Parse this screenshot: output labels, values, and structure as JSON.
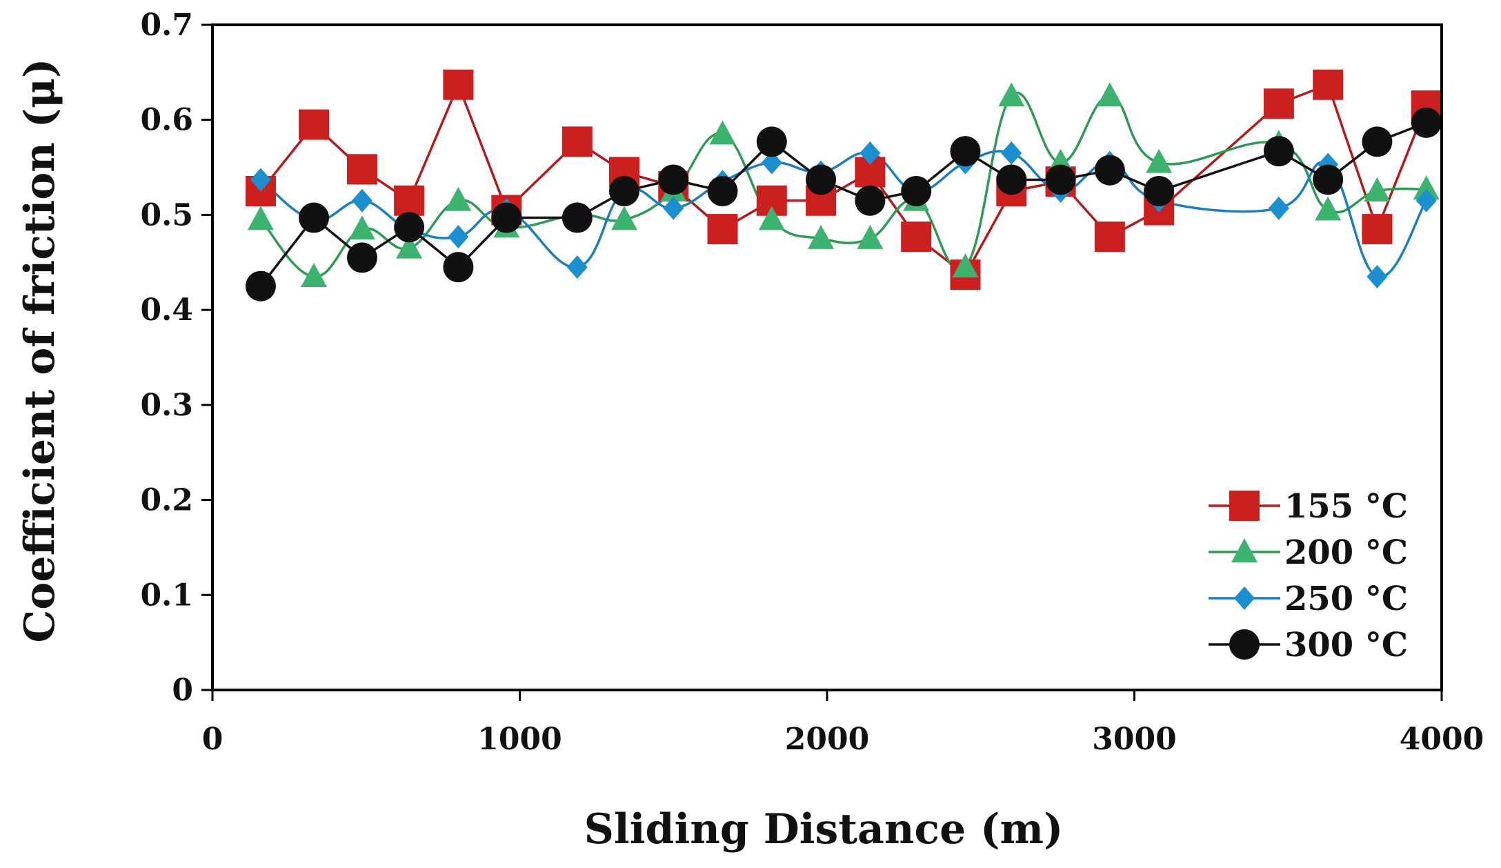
{
  "chart_data": {
    "type": "line",
    "title": "",
    "xlabel": "Sliding Distance (m)",
    "ylabel": "Coefficient of friction (μ)",
    "xlim": [
      0,
      4000
    ],
    "ylim": [
      0,
      0.7
    ],
    "xticks": [
      0,
      1000,
      2000,
      3000,
      4000
    ],
    "yticks": [
      0,
      0.1,
      0.2,
      0.3,
      0.4,
      0.5,
      0.6,
      0.7
    ],
    "xtick_labels": [
      "0",
      "1000",
      "2000",
      "3000",
      "4000"
    ],
    "ytick_labels": [
      "0",
      "0.1",
      "0.2",
      "0.3",
      "0.4",
      "0.5",
      "0.6",
      "0.7"
    ],
    "grid": false,
    "legend_position": "bottom-right",
    "series": [
      {
        "name": "155 °C",
        "color": "#cc1f1f",
        "line_color": "#b31b1b",
        "marker": "square",
        "smooth": false,
        "x": [
          157,
          330,
          487,
          640,
          800,
          957,
          1187,
          1340,
          1500,
          1660,
          1820,
          1980,
          2140,
          2290,
          2450,
          2600,
          2760,
          2920,
          3080,
          3470,
          3630,
          3790,
          3950
        ],
        "y": [
          0.525,
          0.595,
          0.548,
          0.515,
          0.637,
          0.505,
          0.577,
          0.545,
          0.53,
          0.485,
          0.515,
          0.515,
          0.545,
          0.477,
          0.437,
          0.525,
          0.535,
          0.477,
          0.505,
          0.617,
          0.637,
          0.485,
          0.615
        ]
      },
      {
        "name": "200 °C",
        "color": "#3db370",
        "line_color": "#2e9a55",
        "marker": "triangle",
        "smooth": true,
        "x": [
          157,
          330,
          487,
          640,
          800,
          957,
          1187,
          1340,
          1500,
          1660,
          1820,
          1980,
          2140,
          2290,
          2450,
          2600,
          2760,
          2920,
          3080,
          3470,
          3630,
          3790,
          3950
        ],
        "y": [
          0.495,
          0.435,
          0.485,
          0.465,
          0.515,
          0.487,
          0.5,
          0.495,
          0.525,
          0.585,
          0.495,
          0.475,
          0.475,
          0.515,
          0.445,
          0.625,
          0.555,
          0.625,
          0.555,
          0.575,
          0.505,
          0.525,
          0.527
        ]
      },
      {
        "name": "250 °C",
        "color": "#1c8fd1",
        "line_color": "#1a7ec0",
        "marker": "diamond",
        "smooth": true,
        "x": [
          157,
          330,
          487,
          640,
          800,
          957,
          1187,
          1340,
          1500,
          1660,
          1820,
          1980,
          2140,
          2290,
          2450,
          2600,
          2760,
          2920,
          3080,
          3470,
          3630,
          3790,
          3950
        ],
        "y": [
          0.537,
          0.495,
          0.515,
          0.485,
          0.477,
          0.505,
          0.445,
          0.525,
          0.507,
          0.535,
          0.555,
          0.545,
          0.565,
          0.525,
          0.555,
          0.565,
          0.525,
          0.555,
          0.515,
          0.507,
          0.553,
          0.435,
          0.515
        ]
      },
      {
        "name": "300 °C",
        "color": "#111111",
        "line_color": "#111111",
        "marker": "circle",
        "smooth": false,
        "x": [
          157,
          330,
          487,
          640,
          800,
          957,
          1187,
          1340,
          1500,
          1660,
          1820,
          1980,
          2140,
          2290,
          2450,
          2600,
          2760,
          2920,
          3080,
          3470,
          3630,
          3790,
          3950
        ],
        "y": [
          0.425,
          0.497,
          0.455,
          0.487,
          0.445,
          0.497,
          0.497,
          0.525,
          0.537,
          0.525,
          0.577,
          0.537,
          0.515,
          0.525,
          0.567,
          0.537,
          0.537,
          0.547,
          0.525,
          0.567,
          0.537,
          0.577,
          0.597
        ]
      }
    ]
  }
}
